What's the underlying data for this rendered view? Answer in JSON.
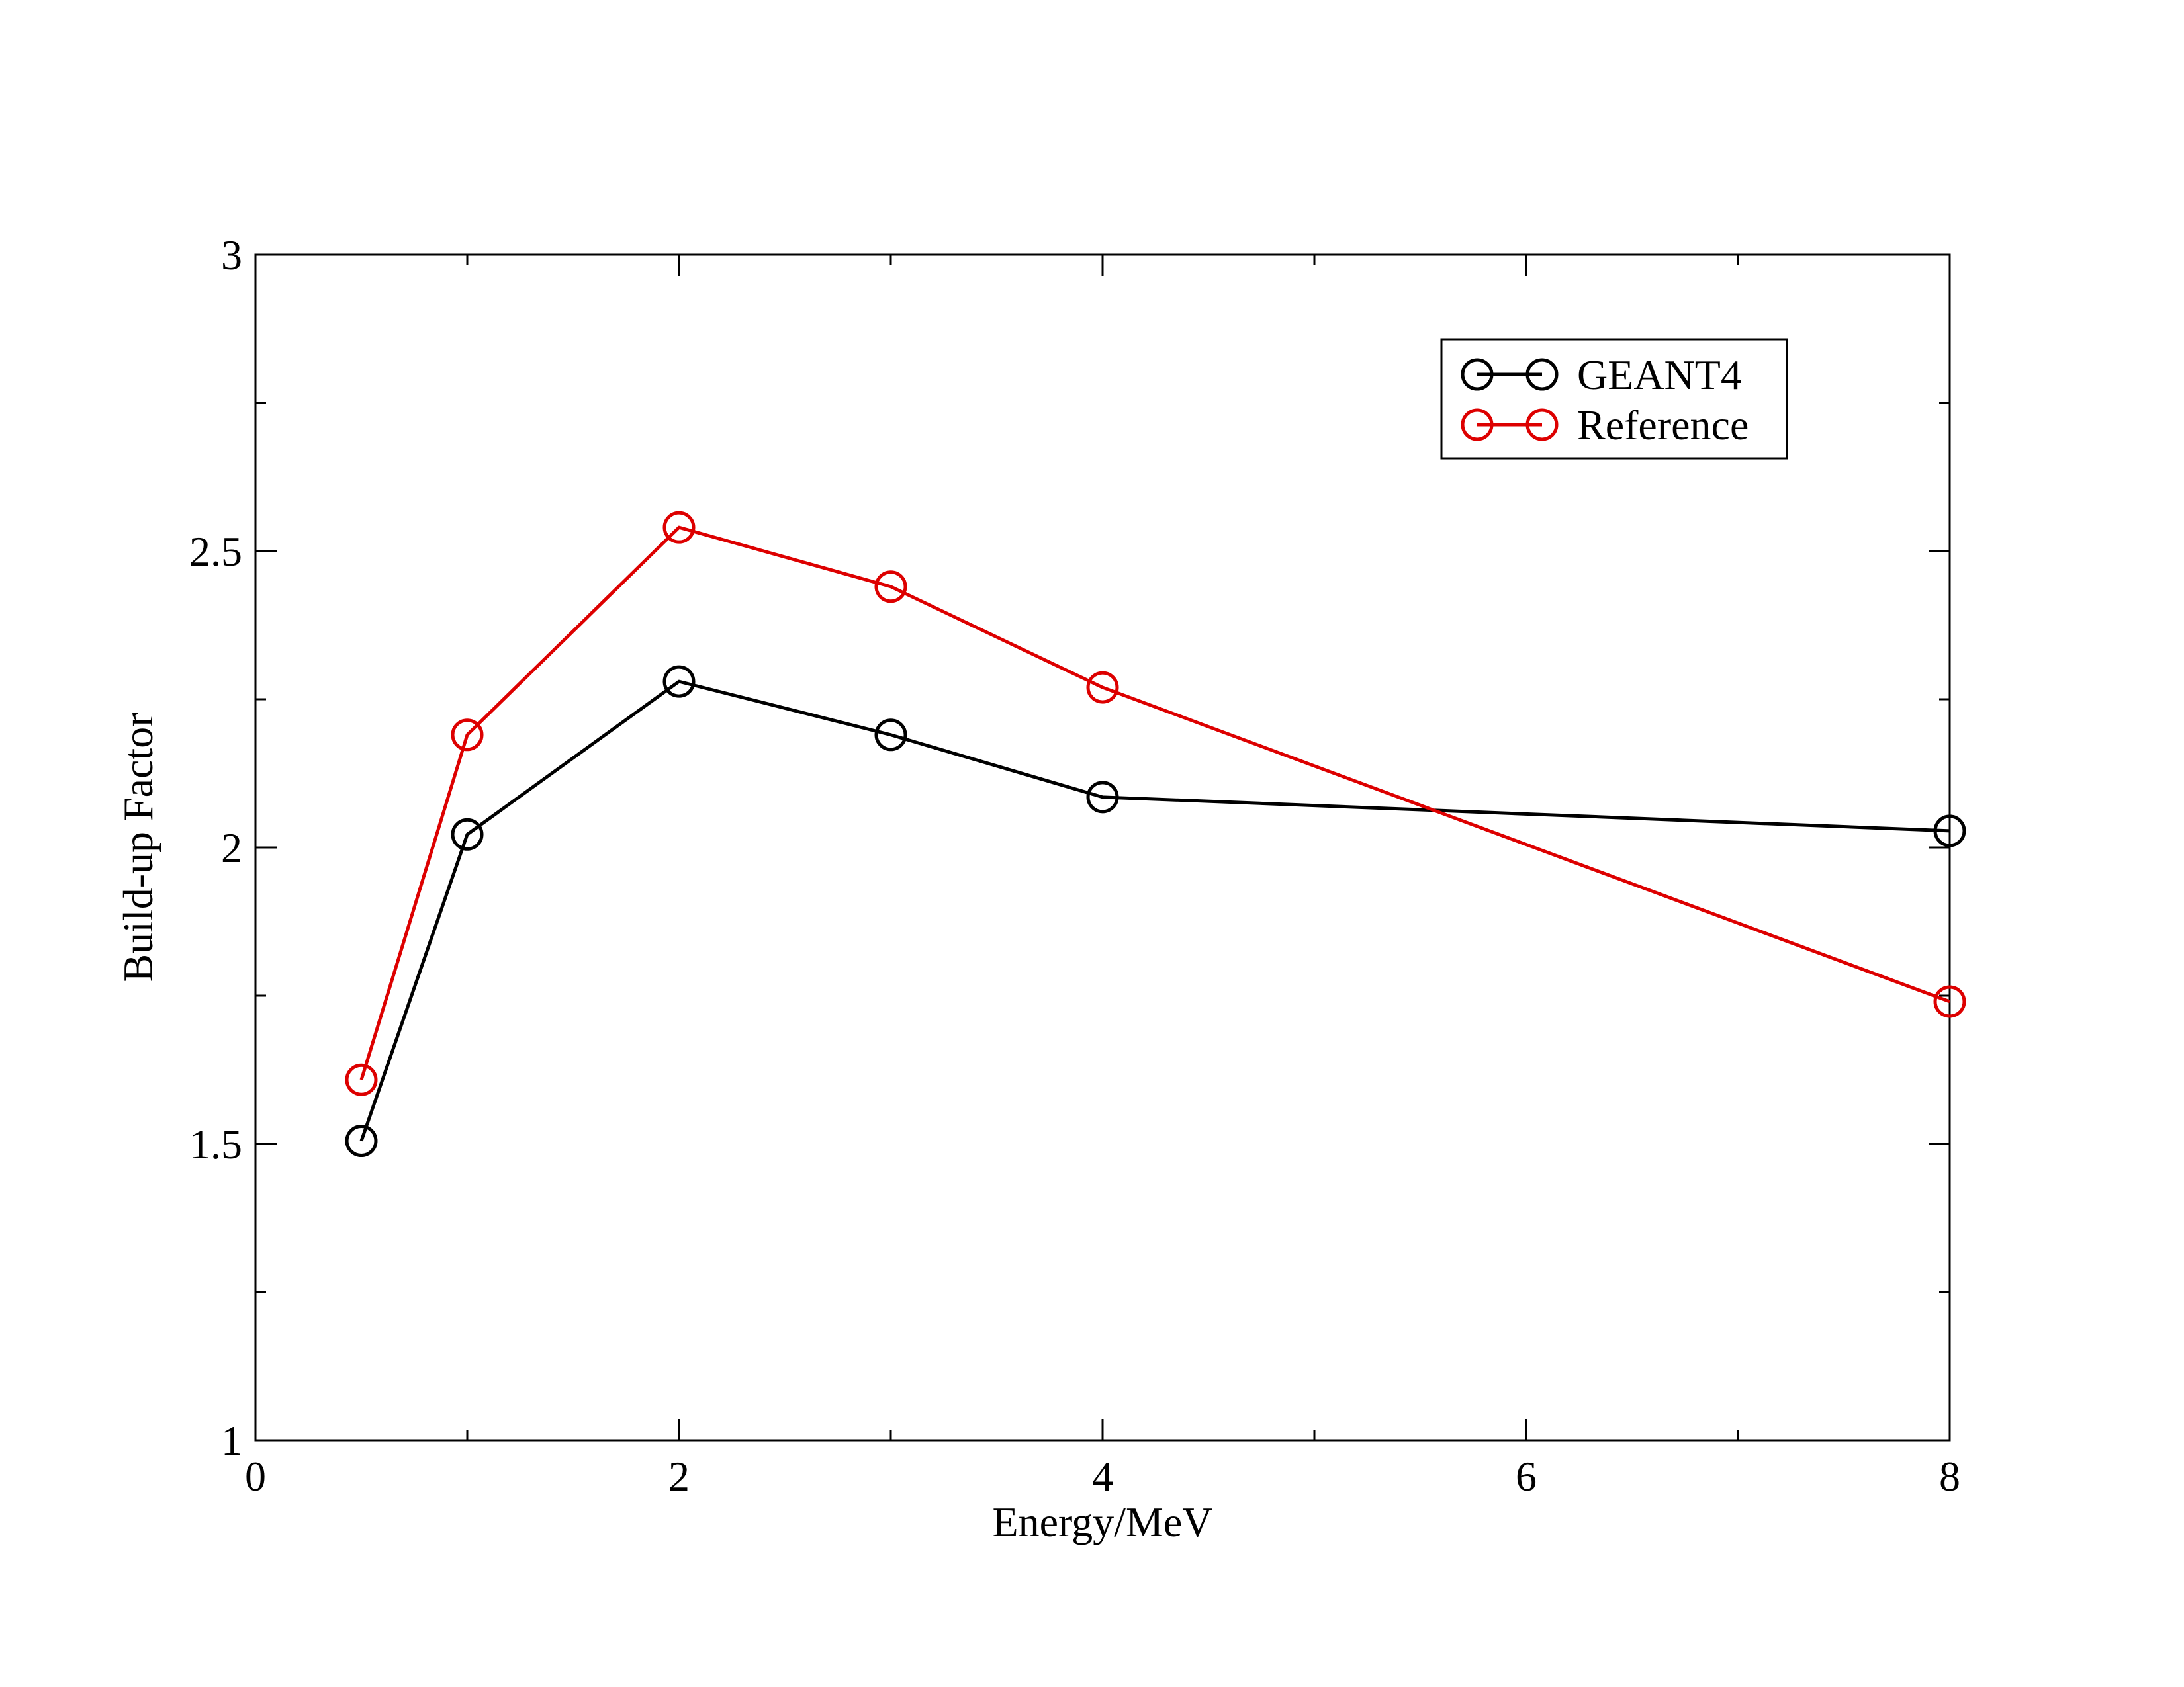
{
  "chart_data": {
    "type": "line",
    "title": "",
    "xlabel": "Energy/MeV",
    "ylabel": "Build-up Factor",
    "xlim": [
      0,
      8
    ],
    "ylim": [
      1,
      3
    ],
    "x_ticks": [
      "0",
      "2",
      "4",
      "6",
      "8"
    ],
    "y_ticks": [
      "1",
      "1.5",
      "2",
      "2.5",
      "3"
    ],
    "grid": false,
    "legend_position": "top-right",
    "marker": "open-circle",
    "series": [
      {
        "name": "GEANT4",
        "color": "#000000",
        "x": [
          0.5,
          1,
          2,
          3,
          4,
          8
        ],
        "y": [
          1.505,
          2.022,
          2.28,
          2.19,
          2.085,
          2.028
        ]
      },
      {
        "name": "Reference",
        "color": "#dd0000",
        "x": [
          0.5,
          1,
          2,
          3,
          4,
          8
        ],
        "y": [
          1.608,
          2.19,
          2.54,
          2.44,
          2.27,
          1.74
        ]
      }
    ]
  }
}
